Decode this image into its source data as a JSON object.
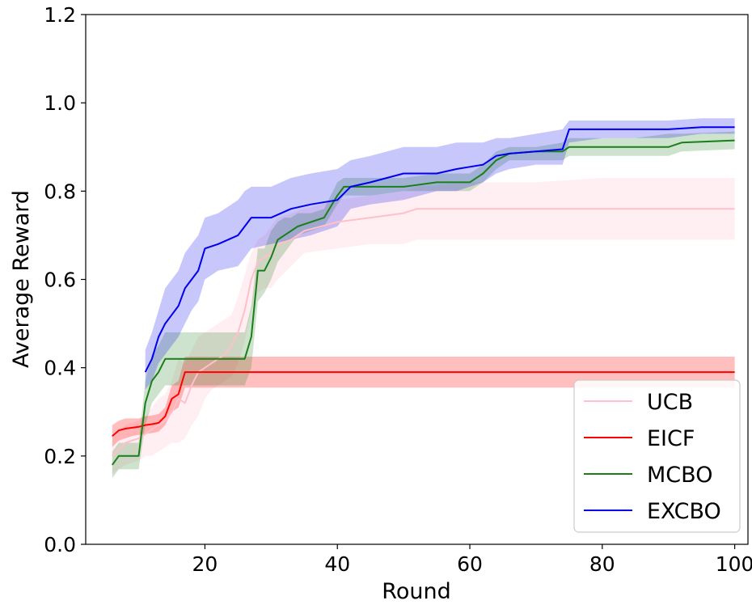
{
  "chart_data": {
    "type": "line",
    "title": "",
    "xlabel": "Round",
    "ylabel": "Average Reward",
    "xlim": [
      2,
      102
    ],
    "ylim": [
      0.0,
      1.2
    ],
    "xticks": [
      20,
      40,
      60,
      80,
      100
    ],
    "xtick_labels": [
      "20",
      "40",
      "60",
      "80",
      "100"
    ],
    "yticks": [
      0.0,
      0.2,
      0.4,
      0.6,
      0.8,
      1.0,
      1.2
    ],
    "ytick_labels": [
      "0.0",
      "0.2",
      "0.4",
      "0.6",
      "0.8",
      "1.0",
      "1.2"
    ],
    "grid": false,
    "legend_position": "bottom-right",
    "series": [
      {
        "name": "UCB",
        "color": "#ffc0cb",
        "band_opacity": 0.25,
        "x": [
          6,
          8,
          10,
          11,
          12,
          13,
          14,
          15,
          16,
          17,
          18,
          19,
          20,
          21,
          22,
          23,
          24,
          25,
          26,
          27,
          28,
          29,
          30,
          31,
          33,
          35,
          40,
          45,
          50,
          52,
          60,
          70,
          80,
          90,
          100
        ],
        "y": [
          0.2,
          0.23,
          0.24,
          0.25,
          0.26,
          0.27,
          0.28,
          0.3,
          0.33,
          0.32,
          0.36,
          0.39,
          0.4,
          0.41,
          0.42,
          0.43,
          0.45,
          0.48,
          0.53,
          0.6,
          0.64,
          0.65,
          0.66,
          0.68,
          0.69,
          0.71,
          0.73,
          0.74,
          0.75,
          0.76,
          0.76,
          0.76,
          0.76,
          0.76,
          0.76
        ],
        "lower": [
          0.16,
          0.18,
          0.19,
          0.2,
          0.2,
          0.21,
          0.22,
          0.23,
          0.23,
          0.24,
          0.27,
          0.29,
          0.33,
          0.35,
          0.36,
          0.37,
          0.38,
          0.41,
          0.46,
          0.53,
          0.57,
          0.58,
          0.58,
          0.6,
          0.63,
          0.66,
          0.67,
          0.68,
          0.68,
          0.69,
          0.69,
          0.69,
          0.69,
          0.69,
          0.69
        ],
        "upper": [
          0.24,
          0.27,
          0.28,
          0.29,
          0.31,
          0.33,
          0.34,
          0.37,
          0.42,
          0.41,
          0.44,
          0.47,
          0.48,
          0.49,
          0.5,
          0.51,
          0.52,
          0.56,
          0.61,
          0.66,
          0.69,
          0.7,
          0.72,
          0.74,
          0.75,
          0.76,
          0.78,
          0.79,
          0.8,
          0.81,
          0.82,
          0.82,
          0.83,
          0.83,
          0.83
        ]
      },
      {
        "name": "EICF",
        "color": "#ff0000",
        "band_opacity": 0.25,
        "x": [
          6,
          7,
          8,
          9,
          10,
          11,
          12,
          13,
          14,
          15,
          16,
          17,
          18,
          20,
          30,
          40,
          50,
          60,
          70,
          80,
          90,
          100
        ],
        "y": [
          0.245,
          0.258,
          0.262,
          0.264,
          0.266,
          0.27,
          0.272,
          0.275,
          0.29,
          0.33,
          0.34,
          0.39,
          0.39,
          0.39,
          0.39,
          0.39,
          0.39,
          0.39,
          0.39,
          0.39,
          0.39,
          0.39
        ],
        "lower": [
          0.22,
          0.235,
          0.24,
          0.245,
          0.248,
          0.25,
          0.252,
          0.255,
          0.27,
          0.3,
          0.31,
          0.355,
          0.355,
          0.355,
          0.355,
          0.355,
          0.355,
          0.355,
          0.355,
          0.355,
          0.355,
          0.355
        ],
        "upper": [
          0.27,
          0.28,
          0.285,
          0.285,
          0.285,
          0.29,
          0.292,
          0.295,
          0.31,
          0.36,
          0.37,
          0.425,
          0.425,
          0.425,
          0.425,
          0.425,
          0.425,
          0.425,
          0.425,
          0.425,
          0.425,
          0.425
        ]
      },
      {
        "name": "MCBO",
        "color": "#1a7f1a",
        "band_opacity": 0.22,
        "x": [
          6,
          7,
          10,
          11,
          12,
          13,
          14,
          15,
          20,
          26,
          27,
          28,
          29,
          30,
          31,
          32,
          33,
          34,
          36,
          38,
          40,
          41,
          45,
          50,
          55,
          60,
          62,
          64,
          66,
          70,
          74,
          75,
          80,
          85,
          90,
          92,
          100
        ],
        "y": [
          0.18,
          0.2,
          0.2,
          0.32,
          0.37,
          0.39,
          0.42,
          0.42,
          0.42,
          0.42,
          0.47,
          0.62,
          0.62,
          0.65,
          0.69,
          0.7,
          0.71,
          0.72,
          0.73,
          0.74,
          0.79,
          0.81,
          0.81,
          0.81,
          0.82,
          0.82,
          0.84,
          0.87,
          0.885,
          0.89,
          0.89,
          0.9,
          0.9,
          0.9,
          0.9,
          0.91,
          0.915
        ],
        "lower": [
          0.15,
          0.17,
          0.17,
          0.27,
          0.32,
          0.34,
          0.36,
          0.36,
          0.36,
          0.36,
          0.4,
          0.55,
          0.57,
          0.6,
          0.64,
          0.66,
          0.68,
          0.7,
          0.71,
          0.72,
          0.77,
          0.79,
          0.79,
          0.8,
          0.8,
          0.8,
          0.82,
          0.85,
          0.87,
          0.87,
          0.87,
          0.88,
          0.88,
          0.88,
          0.88,
          0.89,
          0.895
        ],
        "upper": [
          0.21,
          0.23,
          0.23,
          0.37,
          0.43,
          0.45,
          0.48,
          0.48,
          0.48,
          0.48,
          0.54,
          0.67,
          0.67,
          0.71,
          0.73,
          0.74,
          0.74,
          0.75,
          0.75,
          0.76,
          0.82,
          0.83,
          0.83,
          0.83,
          0.84,
          0.84,
          0.86,
          0.89,
          0.9,
          0.9,
          0.91,
          0.92,
          0.92,
          0.92,
          0.93,
          0.93,
          0.935
        ]
      },
      {
        "name": "EXCBO",
        "color": "#0000ee",
        "band_opacity": 0.22,
        "x": [
          11,
          12,
          13,
          14,
          15,
          16,
          17,
          18,
          19,
          20,
          22,
          25,
          26,
          27,
          30,
          33,
          36,
          40,
          42,
          45,
          50,
          55,
          58,
          60,
          62,
          64,
          66,
          70,
          74,
          75,
          80,
          85,
          90,
          95,
          100
        ],
        "y": [
          0.39,
          0.42,
          0.47,
          0.5,
          0.52,
          0.54,
          0.58,
          0.6,
          0.62,
          0.67,
          0.68,
          0.7,
          0.72,
          0.74,
          0.74,
          0.76,
          0.77,
          0.78,
          0.81,
          0.82,
          0.84,
          0.84,
          0.85,
          0.855,
          0.86,
          0.88,
          0.885,
          0.89,
          0.895,
          0.94,
          0.94,
          0.94,
          0.94,
          0.945,
          0.945
        ],
        "lower": [
          0.35,
          0.37,
          0.41,
          0.43,
          0.45,
          0.47,
          0.5,
          0.53,
          0.55,
          0.6,
          0.62,
          0.63,
          0.65,
          0.67,
          0.68,
          0.69,
          0.7,
          0.72,
          0.76,
          0.77,
          0.78,
          0.8,
          0.8,
          0.81,
          0.82,
          0.84,
          0.85,
          0.86,
          0.86,
          0.91,
          0.92,
          0.92,
          0.92,
          0.93,
          0.93
        ],
        "upper": [
          0.44,
          0.48,
          0.53,
          0.58,
          0.6,
          0.62,
          0.66,
          0.68,
          0.7,
          0.74,
          0.75,
          0.78,
          0.8,
          0.81,
          0.81,
          0.83,
          0.84,
          0.85,
          0.87,
          0.88,
          0.9,
          0.9,
          0.91,
          0.91,
          0.91,
          0.92,
          0.92,
          0.93,
          0.94,
          0.96,
          0.96,
          0.96,
          0.96,
          0.965,
          0.965
        ]
      }
    ]
  }
}
